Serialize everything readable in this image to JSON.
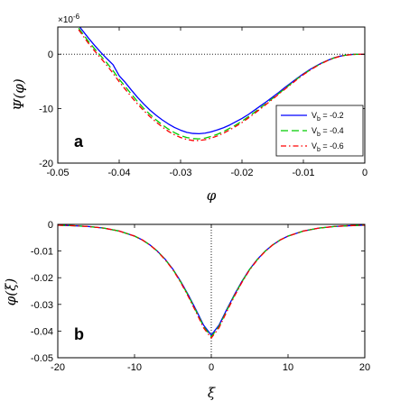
{
  "chart_data": [
    {
      "type": "line",
      "panel_label": "a",
      "xlabel": "φ",
      "ylabel": "Ψ(φ)",
      "y_multiplier": "×10",
      "y_multiplier_exp": "-6",
      "xlim": [
        -0.05,
        0
      ],
      "ylim": [
        -20,
        5
      ],
      "xticks": [
        "-0.05",
        "-0.04",
        "-0.03",
        "-0.02",
        "-0.01",
        "0"
      ],
      "yticks": [
        "-20",
        "-10",
        "0"
      ],
      "ytick_values": [
        -20,
        -10,
        0
      ],
      "xtick_values": [
        -0.05,
        -0.04,
        -0.03,
        -0.02,
        -0.01,
        0
      ],
      "reference_line": {
        "axis": "y",
        "value": 0,
        "style": "dotted"
      },
      "legend_position": "right",
      "series": [
        {
          "name": "V_b = -0.2",
          "legend_main": "V",
          "legend_sub": "b",
          "legend_rest": " = -0.2",
          "color": "#0000ff",
          "dash": "solid",
          "x": [
            -0.0466,
            -0.045,
            -0.044,
            -0.043,
            -0.042,
            -0.041,
            -0.04,
            -0.039,
            -0.038,
            -0.037,
            -0.036,
            -0.035,
            -0.034,
            -0.033,
            -0.032,
            -0.031,
            -0.03,
            -0.029,
            -0.028,
            -0.027,
            -0.026,
            -0.025,
            -0.024,
            -0.023,
            -0.022,
            -0.021,
            -0.02,
            -0.019,
            -0.018,
            -0.017,
            -0.016,
            -0.015,
            -0.014,
            -0.013,
            -0.012,
            -0.011,
            -0.01,
            -0.009,
            -0.008,
            -0.007,
            -0.006,
            -0.005,
            -0.004,
            -0.003,
            -0.002,
            -0.001,
            0
          ],
          "y": [
            5.26,
            2.96,
            1.62,
            0.36,
            -0.82,
            -1.92,
            -3.95,
            -5.2,
            -6.6,
            -7.95,
            -9.15,
            -10.25,
            -11.2,
            -12.05,
            -12.8,
            -13.45,
            -13.95,
            -14.35,
            -14.55,
            -14.6,
            -14.5,
            -14.25,
            -13.9,
            -13.5,
            -13.0,
            -12.4,
            -11.8,
            -11.1,
            -10.3,
            -9.5,
            -8.7,
            -7.85,
            -7.0,
            -6.1,
            -5.25,
            -4.4,
            -3.6,
            -2.85,
            -2.2,
            -1.6,
            -1.1,
            -0.65,
            -0.35,
            -0.15,
            -0.04,
            -0.01,
            0
          ]
        },
        {
          "name": "V_b = -0.4",
          "legend_main": "V",
          "legend_sub": "b",
          "legend_rest": " = -0.4",
          "color": "#00cc00",
          "dash": "8,4",
          "x": [
            -0.0466,
            -0.045,
            -0.044,
            -0.043,
            -0.042,
            -0.041,
            -0.04,
            -0.039,
            -0.038,
            -0.037,
            -0.036,
            -0.035,
            -0.034,
            -0.033,
            -0.032,
            -0.031,
            -0.03,
            -0.029,
            -0.028,
            -0.027,
            -0.026,
            -0.025,
            -0.024,
            -0.023,
            -0.022,
            -0.021,
            -0.02,
            -0.019,
            -0.018,
            -0.017,
            -0.016,
            -0.015,
            -0.014,
            -0.013,
            -0.012,
            -0.011,
            -0.01,
            -0.009,
            -0.008,
            -0.007,
            -0.006,
            -0.005,
            -0.004,
            -0.003,
            -0.002,
            -0.001,
            0
          ],
          "y": [
            4.8,
            2.35,
            1.0,
            -0.3,
            -1.6,
            -3.0,
            -4.6,
            -5.95,
            -7.35,
            -8.7,
            -9.95,
            -11.05,
            -12.05,
            -12.95,
            -13.75,
            -14.4,
            -14.95,
            -15.3,
            -15.5,
            -15.55,
            -15.4,
            -15.1,
            -14.7,
            -14.2,
            -13.6,
            -13.0,
            -12.3,
            -11.5,
            -10.7,
            -9.85,
            -9.0,
            -8.1,
            -7.2,
            -6.3,
            -5.4,
            -4.5,
            -3.7,
            -2.95,
            -2.25,
            -1.65,
            -1.12,
            -0.68,
            -0.36,
            -0.15,
            -0.04,
            -0.01,
            0
          ]
        },
        {
          "name": "V_b = -0.6",
          "legend_main": "V",
          "legend_sub": "b",
          "legend_rest": " = -0.6",
          "color": "#ff0000",
          "dash": "6,3,1.5,3",
          "x": [
            -0.0466,
            -0.045,
            -0.044,
            -0.043,
            -0.042,
            -0.041,
            -0.04,
            -0.039,
            -0.038,
            -0.037,
            -0.036,
            -0.035,
            -0.034,
            -0.033,
            -0.032,
            -0.031,
            -0.03,
            -0.029,
            -0.028,
            -0.027,
            -0.026,
            -0.025,
            -0.024,
            -0.023,
            -0.022,
            -0.021,
            -0.02,
            -0.019,
            -0.018,
            -0.017,
            -0.016,
            -0.015,
            -0.014,
            -0.013,
            -0.012,
            -0.011,
            -0.01,
            -0.009,
            -0.008,
            -0.007,
            -0.006,
            -0.005,
            -0.004,
            -0.003,
            -0.002,
            -0.001,
            0
          ],
          "y": [
            4.5,
            2.0,
            0.6,
            -0.7,
            -2.05,
            -3.5,
            -5.05,
            -6.45,
            -7.85,
            -9.15,
            -10.35,
            -11.45,
            -12.45,
            -13.35,
            -14.15,
            -14.8,
            -15.3,
            -15.65,
            -15.85,
            -15.85,
            -15.7,
            -15.4,
            -15.0,
            -14.5,
            -13.9,
            -13.25,
            -12.55,
            -11.75,
            -10.9,
            -10.05,
            -9.15,
            -8.25,
            -7.3,
            -6.4,
            -5.5,
            -4.6,
            -3.75,
            -3.0,
            -2.3,
            -1.68,
            -1.14,
            -0.7,
            -0.37,
            -0.16,
            -0.05,
            -0.01,
            0
          ]
        }
      ]
    },
    {
      "type": "line",
      "panel_label": "b",
      "xlabel": "ξ",
      "ylabel": "φ(ξ)",
      "xlim": [
        -20,
        20
      ],
      "ylim": [
        -0.05,
        0
      ],
      "xticks": [
        "-20",
        "-10",
        "0",
        "10",
        "20"
      ],
      "xtick_values": [
        -20,
        -10,
        0,
        10,
        20
      ],
      "yticks": [
        "-0.05",
        "-0.04",
        "-0.03",
        "-0.02",
        "-0.01",
        "0"
      ],
      "ytick_values": [
        -0.05,
        -0.04,
        -0.03,
        -0.02,
        -0.01,
        0
      ],
      "reference_line": {
        "axis": "x",
        "value": 0,
        "style": "dotted"
      },
      "series": [
        {
          "color": "#0000ff",
          "dash": "solid",
          "x": [
            -20,
            -18,
            -16,
            -14,
            -12,
            -10,
            -9,
            -8,
            -7,
            -6,
            -5,
            -4,
            -3,
            -2,
            -1,
            0,
            1,
            2,
            3,
            4,
            5,
            6,
            7,
            8,
            9,
            10,
            12,
            14,
            16,
            18,
            20
          ],
          "y": [
            -0.0003,
            -0.0005,
            -0.0008,
            -0.0014,
            -0.0025,
            -0.0044,
            -0.0058,
            -0.0077,
            -0.0101,
            -0.0131,
            -0.0168,
            -0.0213,
            -0.0264,
            -0.032,
            -0.0378,
            -0.0415,
            -0.0378,
            -0.032,
            -0.0264,
            -0.0213,
            -0.0168,
            -0.0131,
            -0.0101,
            -0.0077,
            -0.0058,
            -0.0044,
            -0.0025,
            -0.0014,
            -0.0008,
            -0.0005,
            -0.0003
          ]
        },
        {
          "color": "#00cc00",
          "dash": "8,4",
          "x": [
            -20,
            -18,
            -16,
            -14,
            -12,
            -10,
            -9,
            -8,
            -7,
            -6,
            -5,
            -4,
            -3,
            -2,
            -1,
            0,
            1,
            2,
            3,
            4,
            5,
            6,
            7,
            8,
            9,
            10,
            12,
            14,
            16,
            18,
            20
          ],
          "y": [
            -0.0003,
            -0.0005,
            -0.0008,
            -0.0014,
            -0.0025,
            -0.0044,
            -0.0058,
            -0.0077,
            -0.0101,
            -0.0132,
            -0.0169,
            -0.0215,
            -0.0267,
            -0.0324,
            -0.0383,
            -0.0421,
            -0.0383,
            -0.0324,
            -0.0267,
            -0.0215,
            -0.0169,
            -0.0132,
            -0.0101,
            -0.0077,
            -0.0058,
            -0.0044,
            -0.0025,
            -0.0014,
            -0.0008,
            -0.0005,
            -0.0003
          ]
        },
        {
          "color": "#ff0000",
          "dash": "6,3,1.5,3",
          "x": [
            -20,
            -18,
            -16,
            -14,
            -12,
            -10,
            -9,
            -8,
            -7,
            -6,
            -5,
            -4,
            -3,
            -2,
            -1,
            0,
            1,
            2,
            3,
            4,
            5,
            6,
            7,
            8,
            9,
            10,
            12,
            14,
            16,
            18,
            20
          ],
          "y": [
            -0.0003,
            -0.0005,
            -0.0008,
            -0.0014,
            -0.0025,
            -0.0044,
            -0.0058,
            -0.0077,
            -0.0102,
            -0.0133,
            -0.017,
            -0.0217,
            -0.027,
            -0.0328,
            -0.0388,
            -0.0426,
            -0.0388,
            -0.0328,
            -0.027,
            -0.0217,
            -0.017,
            -0.0133,
            -0.0102,
            -0.0077,
            -0.0058,
            -0.0044,
            -0.0025,
            -0.0014,
            -0.0008,
            -0.0005,
            -0.0003
          ]
        }
      ]
    }
  ]
}
